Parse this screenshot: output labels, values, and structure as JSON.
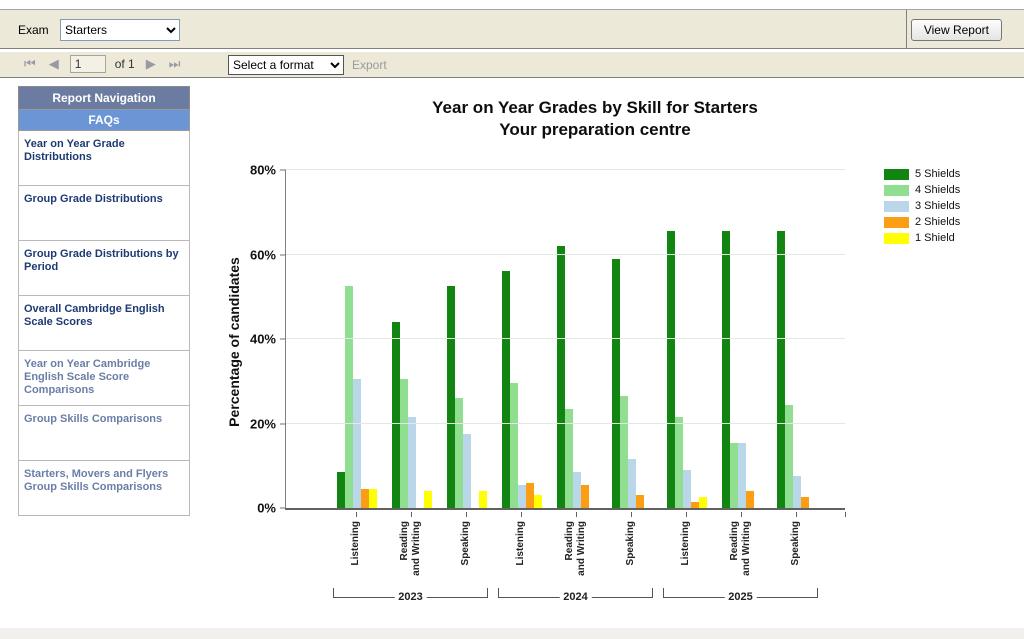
{
  "header": {
    "exam_label": "Exam",
    "exam_value": "Starters",
    "view_report_label": "View Report"
  },
  "pager": {
    "page_value": "1",
    "of_label": "of 1",
    "format_select_value": "Select a format",
    "export_label": "Export",
    "icons": {
      "first_page_icon": "⏮",
      "prev_page_icon": "◀",
      "next_page_icon": "▶",
      "last_page_icon": "⏭",
      "chevron_down_icon": "▾"
    }
  },
  "sidebar": {
    "title": "Report Navigation",
    "subtitle": "FAQs",
    "items": [
      {
        "label": "Year on Year Grade Distributions",
        "muted": false
      },
      {
        "label": "Group Grade Distributions",
        "muted": false
      },
      {
        "label": "Group Grade Distributions by Period",
        "muted": false
      },
      {
        "label": "Overall Cambridge English Scale Scores",
        "muted": false
      },
      {
        "label": "Year on Year Cambridge English Scale Score Comparisons",
        "muted": true
      },
      {
        "label": "Group Skills Comparisons",
        "muted": true
      },
      {
        "label": "Starters, Movers and Flyers Group Skills Comparisons",
        "muted": true
      }
    ]
  },
  "chart_data": {
    "type": "bar",
    "title": "Year on Year Grades by Skill for Starters",
    "subtitle": "Your preparation centre",
    "ylabel": "Percentage of candidates",
    "ylim": [
      0,
      80
    ],
    "ytick_labels": [
      "0%",
      "20%",
      "40%",
      "60%",
      "80%"
    ],
    "grid": true,
    "legend_position": "top-right",
    "categories": [
      "Listening",
      "Reading\nand Writing",
      "Speaking",
      "Listening",
      "Reading\nand Writing",
      "Speaking",
      "Listening",
      "Reading\nand Writing",
      "Speaking"
    ],
    "year_groups": [
      {
        "year": "2023",
        "span": 3
      },
      {
        "year": "2024",
        "span": 3
      },
      {
        "year": "2025",
        "span": 3
      }
    ],
    "series": [
      {
        "name": "5 Shields",
        "color": "#128412",
        "values": [
          8.5,
          44,
          52.5,
          56,
          62,
          59,
          65.5,
          65.5,
          65.5
        ]
      },
      {
        "name": "4 Shields",
        "color": "#90DE90",
        "values": [
          52.5,
          30.5,
          26,
          29.5,
          23.5,
          26.5,
          21.5,
          15.5,
          24.5
        ]
      },
      {
        "name": "3 Shields",
        "color": "#B9D7E8",
        "values": [
          30.5,
          21.5,
          17.5,
          5.5,
          8.5,
          11.5,
          9,
          15.5,
          7.5
        ]
      },
      {
        "name": "2 Shields",
        "color": "#FB9E13",
        "values": [
          4.5,
          0,
          0,
          6,
          5.5,
          3,
          1.5,
          4,
          2.5
        ]
      },
      {
        "name": "1 Shield",
        "color": "#FFFF00",
        "values": [
          4.5,
          4,
          4,
          3,
          0,
          0,
          2.5,
          0,
          0
        ]
      }
    ]
  }
}
